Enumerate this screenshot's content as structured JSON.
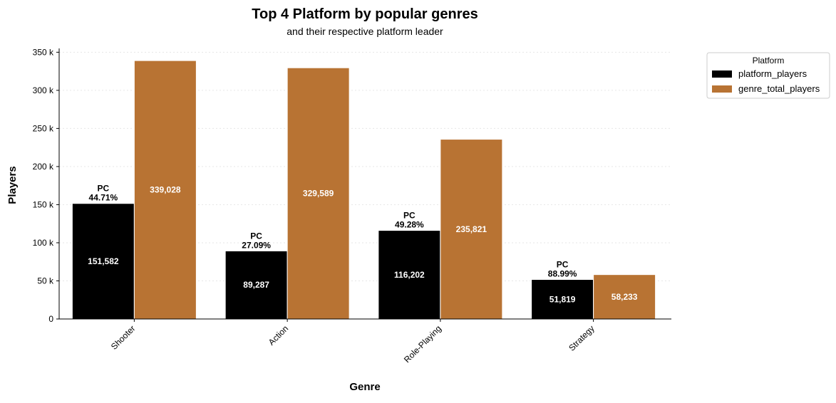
{
  "chart_data": {
    "type": "bar",
    "title": "Top 4 Platform by popular genres",
    "subtitle": "and their respective platform leader",
    "xlabel": "Genre",
    "ylabel": "Players",
    "categories": [
      "Shooter",
      "Action",
      "Role-Playing",
      "Strategy"
    ],
    "series": [
      {
        "name": "platform_players",
        "color": "#000000",
        "values": [
          151582,
          89287,
          116202,
          51819
        ],
        "value_labels": [
          "151,582",
          "89,287",
          "116,202",
          "51,819"
        ],
        "top_labels": [
          [
            "PC",
            "44.71%"
          ],
          [
            "PC",
            "27.09%"
          ],
          [
            "PC",
            "49.28%"
          ],
          [
            "PC",
            "88.99%"
          ]
        ]
      },
      {
        "name": "genre_total_players",
        "color": "#b87333",
        "values": [
          339028,
          329589,
          235821,
          58233
        ],
        "value_labels": [
          "339,028",
          "329,589",
          "235,821",
          "58,233"
        ]
      }
    ],
    "ylim": [
      0,
      355000
    ],
    "yticks": [
      0,
      50000,
      100000,
      150000,
      200000,
      250000,
      300000,
      350000
    ],
    "ytick_labels": [
      "0",
      "50 k",
      "100 k",
      "150 k",
      "200 k",
      "250 k",
      "300 k",
      "350 k"
    ],
    "grid": "y-dotted",
    "legend": {
      "title": "Platform",
      "placement": "outside-top-right",
      "entries": [
        "platform_players",
        "genre_total_players"
      ]
    }
  }
}
